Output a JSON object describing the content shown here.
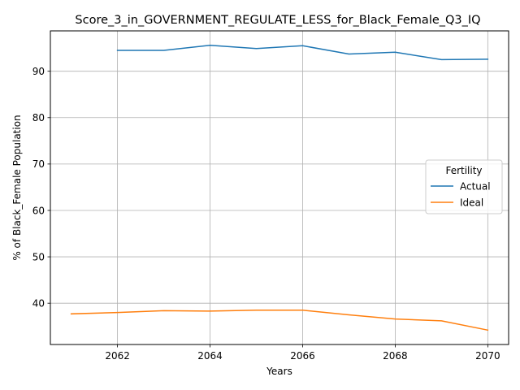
{
  "chart_data": {
    "type": "line",
    "title": "Score_3_in_GOVERNMENT_REGULATE_LESS_for_Black_Female_Q3_IQ",
    "xlabel": "Years",
    "ylabel": "% of Black_Female Population",
    "xlim": [
      2060.55,
      2070.45
    ],
    "ylim": [
      31.1,
      98.7
    ],
    "xticks": [
      2062,
      2064,
      2066,
      2068,
      2070
    ],
    "yticks": [
      40,
      50,
      60,
      70,
      80,
      90
    ],
    "grid": true,
    "legend": {
      "title": "Fertility",
      "placement": "center-right"
    },
    "series": [
      {
        "name": "Actual",
        "color": "#1f77b4",
        "x": [
          2062,
          2063,
          2064,
          2065,
          2066,
          2067,
          2068,
          2069,
          2070
        ],
        "values": [
          94.5,
          94.5,
          95.6,
          94.9,
          95.5,
          93.7,
          94.1,
          92.5,
          92.6
        ]
      },
      {
        "name": "Ideal",
        "color": "#ff7f0e",
        "x": [
          2061,
          2062,
          2063,
          2064,
          2065,
          2066,
          2067,
          2068,
          2069,
          2070
        ],
        "values": [
          37.7,
          38.0,
          38.4,
          38.3,
          38.5,
          38.5,
          37.5,
          36.6,
          36.2,
          34.2
        ]
      }
    ]
  }
}
